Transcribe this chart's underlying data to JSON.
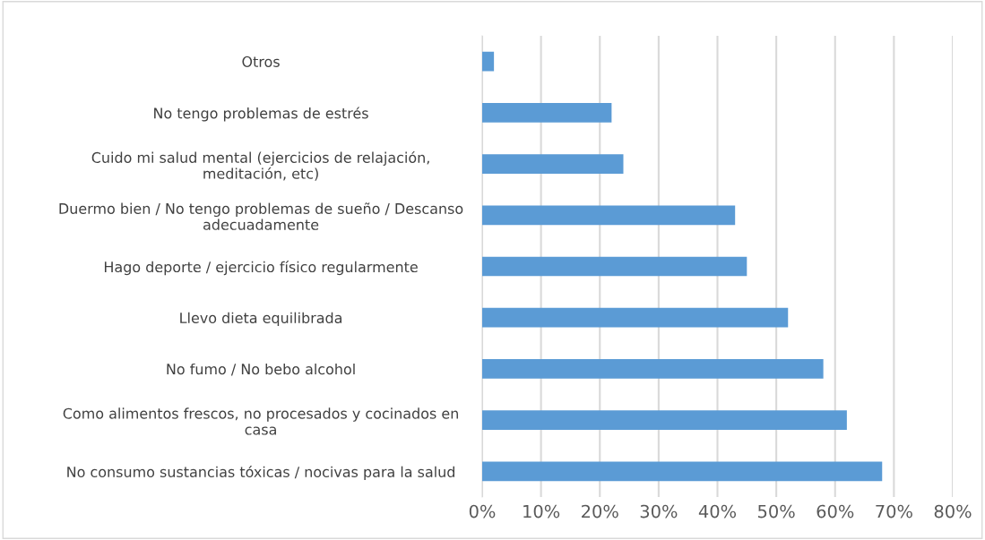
{
  "chart_data": {
    "type": "bar",
    "orientation": "horizontal",
    "categories": [
      "Otros",
      "No tengo problemas de estrés",
      "Cuido mi salud mental (ejercicios de relajación,\nmeditación, etc)",
      "Duermo bien / No tengo problemas de sueño / Descanso\nadecuadamente",
      "Hago deporte / ejercicio físico regularmente",
      "Llevo dieta equilibrada",
      "No fumo / No bebo alcohol",
      "Como alimentos frescos, no procesados y cocinados en\ncasa",
      "No consumo sustancias tóxicas / nocivas para la salud"
    ],
    "values": [
      2,
      22,
      24,
      43,
      45,
      52,
      58,
      62,
      68
    ],
    "color": "#5b9bd5",
    "xlim": [
      0,
      80
    ],
    "xticks": [
      {
        "value": 0,
        "label": "0%"
      },
      {
        "value": 10,
        "label": "10%"
      },
      {
        "value": 20,
        "label": "20%"
      },
      {
        "value": 30,
        "label": "30%"
      },
      {
        "value": 40,
        "label": "40%"
      },
      {
        "value": 50,
        "label": "50%"
      },
      {
        "value": 60,
        "label": "60%"
      },
      {
        "value": 70,
        "label": "70%"
      },
      {
        "value": 80,
        "label": "80%"
      }
    ],
    "grid": "x"
  }
}
